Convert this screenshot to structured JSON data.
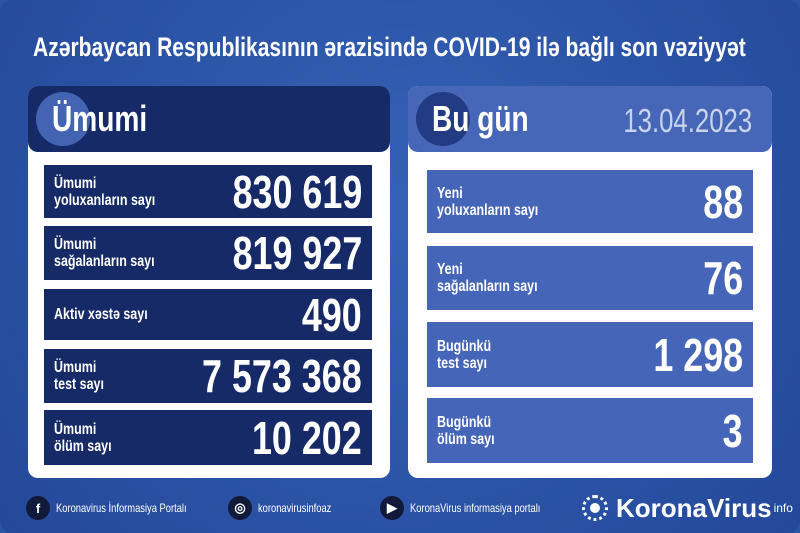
{
  "title": "Azərbaycan Respublikasının ərazisində COVID-19 ilə bağlı son vəziyyət",
  "total": {
    "heading": "Ümumi",
    "rows": [
      {
        "l1": "Ümumi",
        "l2": "yoluxanların sayı",
        "value": "830 619"
      },
      {
        "l1": "Ümumi",
        "l2": "sağalanların sayı",
        "value": "819 927"
      },
      {
        "l1": "Aktiv xəstə sayı",
        "l2": "",
        "value": "490"
      },
      {
        "l1": "Ümumi",
        "l2": "test sayı",
        "value": "7 573 368"
      },
      {
        "l1": "Ümumi",
        "l2": "ölüm sayı",
        "value": "10 202"
      }
    ]
  },
  "today": {
    "heading": "Bu gün",
    "date": "13.04.2023",
    "rows": [
      {
        "l1": "Yeni",
        "l2": "yoluxanların sayı",
        "value": "88"
      },
      {
        "l1": "Yeni",
        "l2": "sağalanların sayı",
        "value": "76"
      },
      {
        "l1": "Bugünkü",
        "l2": "test sayı",
        "value": "1 298"
      },
      {
        "l1": "Bugünkü",
        "l2": "ölüm sayı",
        "value": "3"
      }
    ]
  },
  "footer": {
    "facebook": "Koronavirus İnformasiya Portalı",
    "instagram": "koronavirusinfoaz",
    "youtube": "KoronaVirus informasiya portalı",
    "logo": "KoronaVirus",
    "logo_sup": "info"
  },
  "colors": {
    "background": "#2d55a6",
    "navy": "#172a68",
    "accent": "#4566b8"
  }
}
